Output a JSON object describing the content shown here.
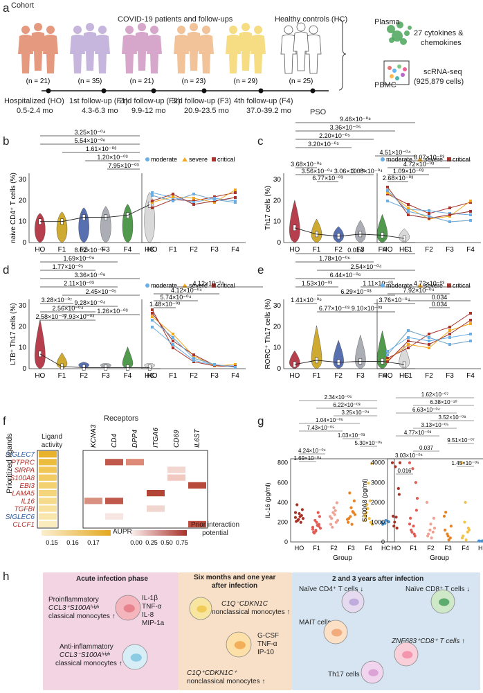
{
  "panels": {
    "a": "a",
    "b": "b",
    "c": "c",
    "d": "d",
    "e": "e",
    "f": "f",
    "g": "g",
    "h": "h"
  },
  "a": {
    "cohort": "Cohort",
    "covid_title": "COVID-19 patients and follow-ups",
    "hc_title": "Healthy controls (HC)",
    "groups": [
      {
        "n": "(n = 21)",
        "color": "#e59a80"
      },
      {
        "n": "(n = 35)",
        "color": "#c6b5dc"
      },
      {
        "n": "(n = 21)",
        "color": "#d7a6cb"
      },
      {
        "n": "(n = 23)",
        "color": "#f2c299"
      },
      {
        "n": "(n = 29)",
        "color": "#f6dc82"
      },
      {
        "n": "(n = 25)",
        "color": "#ffffff"
      }
    ],
    "timeline": [
      {
        "label": "Hospitalized (HO)",
        "time": "0.5-2.4 mo"
      },
      {
        "label": "1st follow-up (F1)",
        "time": "4.3-6.3 mo"
      },
      {
        "label": "2nd follow-up (F2)",
        "time": "9.9-12 mo"
      },
      {
        "label": "3rd follow-up (F3)",
        "time": "20.9-23.5 mo"
      },
      {
        "label": "4th follow-up (F4)",
        "time": "37.0-39.2 mo"
      }
    ],
    "pso": "PSO",
    "plasma": "Plasma",
    "cytokines": "27 cytokines &",
    "cytokines2": "chemokines",
    "pbmc": "PBMC",
    "scrna": "scRNA-seq",
    "cells": "(925,879 cells)"
  },
  "legend": {
    "moderate": "moderate",
    "severe": "severe",
    "critical": "critical",
    "colors": {
      "moderate": "#6aaee6",
      "severe": "#f2a81d",
      "critical": "#a8342c"
    }
  },
  "violin_groups": [
    "HO",
    "F1",
    "F2",
    "F3",
    "F4",
    "HC"
  ],
  "line_groups": [
    "HO",
    "F1",
    "F2",
    "F3",
    "F4"
  ],
  "b": {
    "ylabel": "naive CD4⁺ T cells (%)",
    "yticks": [
      "0",
      "10",
      "20",
      "30"
    ],
    "pvals": [
      "3.25×10⁻⁰⁴",
      "5.54×10⁻⁰⁶",
      "1.61×10⁻⁰³",
      "1.20×10⁻⁰³",
      "7.95×10⁻⁰³"
    ],
    "medians": [
      10,
      10,
      12,
      12,
      13,
      18
    ],
    "colors": [
      "#b02a3a",
      "#c9a21a",
      "#4760a8",
      "#a3a7ad",
      "#3f8f3a",
      "#d5d5d5"
    ]
  },
  "c": {
    "ylabel": "Th17 cells (%)",
    "yticks": [
      "0",
      "10",
      "20",
      "30"
    ],
    "pvals_top": [
      "9.46×10⁻⁰⁸",
      "3.36×10⁻⁰⁵",
      "2.20×10⁻⁰⁵",
      "3.20×10⁻⁰⁵",
      "4.51×10⁻⁰⁴"
    ],
    "pvals_low": [
      "3.68×10⁻⁰⁶",
      "3.56×10⁻⁰⁴",
      "6.77×10⁻⁰³",
      "3.06×10⁻⁰²",
      "3.08×10⁻⁰⁴"
    ],
    "pvals_line": [
      "8.07×10⁻⁰³",
      "4.72×10⁻⁰³",
      "1.09×10⁻⁰³",
      "2.68×10⁻⁰³"
    ],
    "medians": [
      7,
      4,
      3,
      4,
      3.5,
      2
    ]
  },
  "d": {
    "ylabel": "LTB⁺ Th17 cells (%)",
    "yticks": [
      "0",
      "10",
      "20",
      "30"
    ],
    "pvals": [
      "8.02×10⁻⁰⁹",
      "1.69×10⁻⁰⁸",
      "1.77×10⁻⁰⁵",
      "3.36×10⁻⁰⁸",
      "2.11×10⁻⁰³",
      "2.45×10⁻⁰⁵",
      "3.28×10⁻⁰⁷",
      "9.28×10⁻⁰⁴",
      "2.56×10⁻⁰⁴",
      "1.26×10⁻⁰³",
      "2.58×10⁻⁰⁸",
      "7.93×10⁻⁰³"
    ],
    "pvals_line": [
      "4.12×10⁻⁰⁴",
      "4.12×10⁻⁰⁴",
      "5.74×10⁻⁰⁴",
      "1.48×10⁻⁰³"
    ],
    "medians": [
      7,
      1,
      0.5,
      0.5,
      0.5,
      0.5
    ]
  },
  "e": {
    "ylabel": "RORC⁺ Th17 cells (%)",
    "yticks": [
      "0",
      "10",
      "20",
      "30"
    ],
    "pvals": [
      "0.014",
      "1.78×10⁻⁰⁶",
      "2.54×10⁻⁰⁴",
      "6.44×10⁻⁰⁶",
      "1.53×10⁻⁰³",
      "1.11×10⁻⁰³",
      "6.29×10⁻⁰³",
      "3.76×10⁻⁰⁴",
      "1.41×10⁻⁰⁶",
      "9.10×10⁻⁰³",
      "6.77×10⁻⁰³"
    ],
    "pvals_line": [
      "4.72×10⁻⁰³",
      "7.92×10⁻⁰⁴",
      "0.034",
      "0.034"
    ],
    "medians": [
      2,
      4,
      3,
      3.5,
      3.5,
      2
    ]
  },
  "f": {
    "receptors_title": "Receptors",
    "receptors": [
      "KCNA3",
      "CD4",
      "DPP4",
      "ITGA6",
      "CD69",
      "IL6ST"
    ],
    "ligand_activity": "Ligand activity",
    "ylabel": "Prioritized ligands",
    "ligands": [
      {
        "name": "SIGLEC7",
        "color": "#2a5aa6"
      },
      {
        "name": "PTPRC",
        "color": "#b0302a"
      },
      {
        "name": "SIRPA",
        "color": "#b0302a"
      },
      {
        "name": "S100A8",
        "color": "#b0302a"
      },
      {
        "name": "EBI3",
        "color": "#b0302a"
      },
      {
        "name": "LAMA5",
        "color": "#b0302a"
      },
      {
        "name": "IL16",
        "color": "#b0302a"
      },
      {
        "name": "TGFBI",
        "color": "#b0302a"
      },
      {
        "name": "SIGLEC6",
        "color": "#2a5aa6"
      },
      {
        "name": "CLCF1",
        "color": "#b0302a"
      }
    ],
    "aupr_label": "AUPR",
    "aupr_ticks": [
      "0.15",
      "0.16",
      "0.17"
    ],
    "prior_label": "Prior interaction potential",
    "prior_ticks": [
      "0.00",
      "0.25",
      "0.50",
      "0.75"
    ]
  },
  "g": {
    "left": {
      "ylabel": "IL-16 (pg/ml)",
      "yticks": [
        "0",
        "200",
        "400",
        "600",
        "800"
      ],
      "pvals": [
        "2.34×10⁻⁰⁶",
        "6.22×10⁻⁰³",
        "3.25×10⁻⁰⁴",
        "1.04×10⁻⁰⁵",
        "7.43×10⁻⁰⁵",
        "1.03×10⁻⁰³",
        "5.30×10⁻⁰⁵",
        "4.24×10⁻⁰⁴",
        "1.69×10⁻⁰⁴"
      ]
    },
    "right": {
      "ylabel": "S100A8 (pg/ml)",
      "yticks": [
        "0",
        "1000",
        "2000",
        "3000",
        "4000"
      ],
      "pvals": [
        "1.62×10⁻⁰⁷",
        "6.38×10⁻¹⁰",
        "6.63×10⁻⁰⁴",
        "3.52×10⁻⁰⁸",
        "3.13×10⁻⁰⁵",
        "4.77×10⁻⁰³",
        "9.51×10⁻⁰⁷",
        "0.037",
        "3.03×10⁻⁰⁴",
        "1.45×10⁻⁰⁵",
        "0.016"
      ]
    },
    "xlabel": "Group",
    "groups": [
      "HO",
      "F1",
      "F2",
      "F3",
      "F4",
      "HC"
    ]
  },
  "h": {
    "acute_title": "Acute infection phase",
    "acute_pro": "Proinflammatory",
    "acute_pro2": "CCL3⁺S100Aʰⁱᵍʰ",
    "acute_pro3": "classical monocytes ↑",
    "acute_cyt": [
      "IL-1β",
      "TNF-α",
      "IL-8",
      "MIP-1a"
    ],
    "acute_anti": "Anti-inflammatory",
    "acute_anti2": "CCL3⁻S100Aʰⁱᵍʰ",
    "acute_anti3": "classical monocytes ↑",
    "mid_title": "Six months and one year",
    "mid_title2": "after infection",
    "mid_1": "C1Q⁻CDKN1C",
    "mid_1b": "nonclassical monocytes ↑",
    "mid_cyt": [
      "G-CSF",
      "TNF-α",
      "IP-10"
    ],
    "mid_2": "C1Q⁺CDKN1C⁺",
    "mid_2b": "nonclassical monocytes ↑",
    "late_title": "2 and 3 years after infection",
    "late_naive4": "Naïve CD4⁺ T cells ↓",
    "late_naive8": "Naïve CD8⁺ T cells ↓",
    "late_mait": "MAIT cells ↓",
    "late_znf": "ZNF683⁺CD8⁺ T cells ↑",
    "late_th17": "Th17 cells ↑"
  }
}
